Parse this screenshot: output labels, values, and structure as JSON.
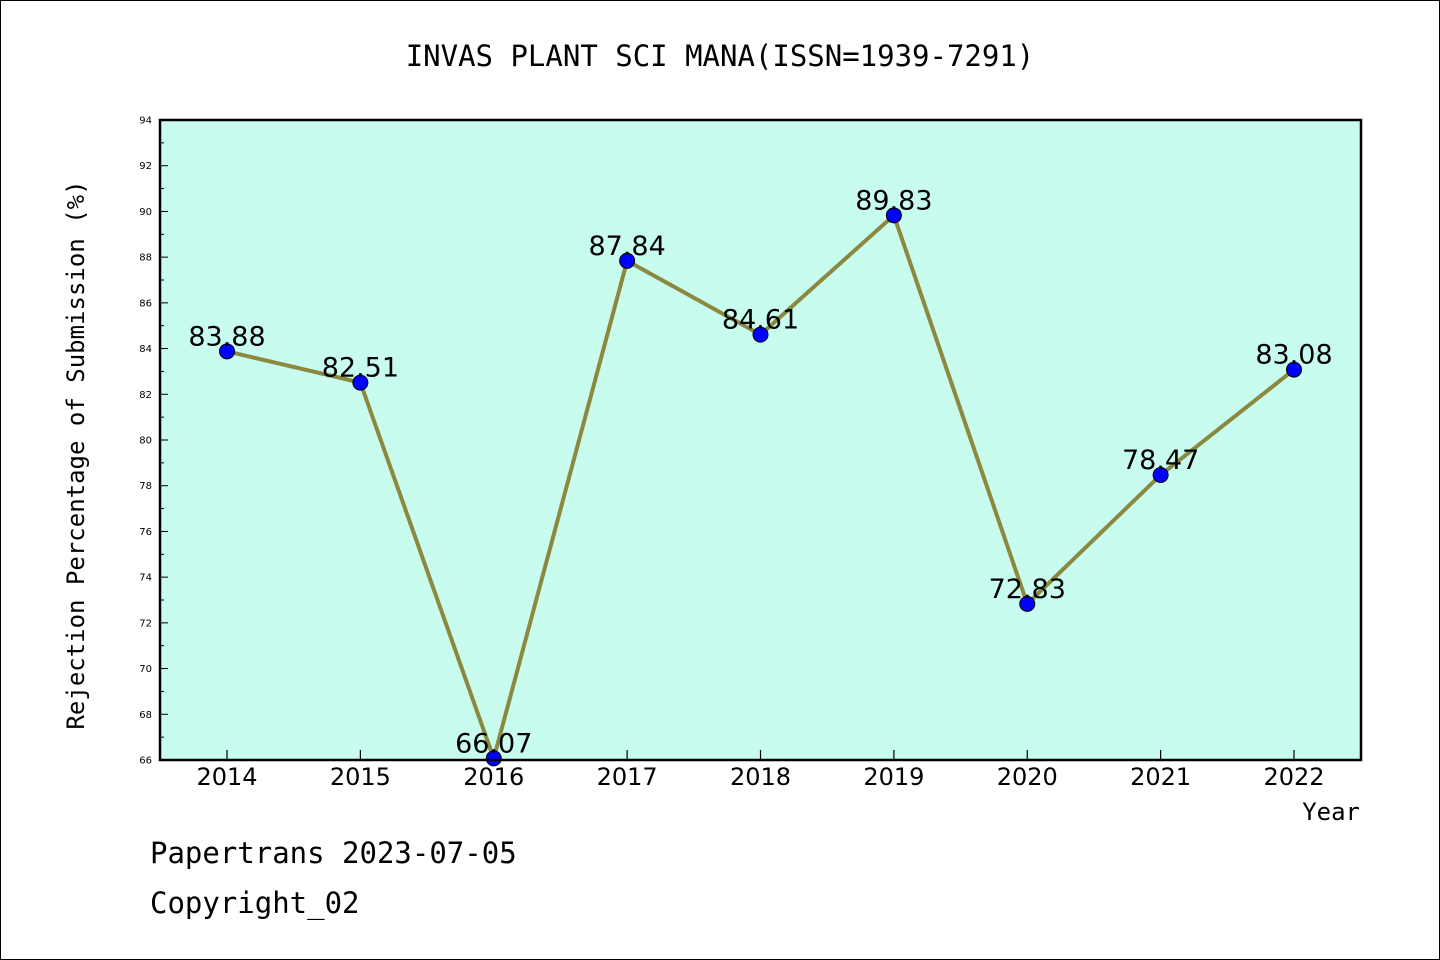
{
  "chart_data": {
    "type": "line",
    "title": "INVAS PLANT SCI MANA(ISSN=1939-7291)",
    "xlabel": "Year",
    "ylabel": "Rejection Percentage of Submission (%)",
    "categories": [
      "2014",
      "2015",
      "2016",
      "2017",
      "2018",
      "2019",
      "2020",
      "2021",
      "2022"
    ],
    "values": [
      83.88,
      82.51,
      66.07,
      87.84,
      84.61,
      89.83,
      72.83,
      78.47,
      83.08
    ],
    "data_labels": [
      "83.88",
      "82.51",
      "66.07",
      "87.84",
      "84.61",
      "89.83",
      "72.83",
      "78.47",
      "83.08"
    ],
    "ylim": [
      66,
      94
    ],
    "yticks": [
      "66",
      "68",
      "70",
      "72",
      "74",
      "76",
      "78",
      "80",
      "82",
      "84",
      "86",
      "88",
      "90",
      "92",
      "94"
    ],
    "grid": false,
    "colors": {
      "plot_background": "#c8fcee",
      "line": "#8b8840",
      "marker": "#0000ff",
      "axes": "#000000"
    }
  },
  "footer": {
    "line1": "Papertrans 2023-07-05",
    "line2": "Copyright_02"
  }
}
